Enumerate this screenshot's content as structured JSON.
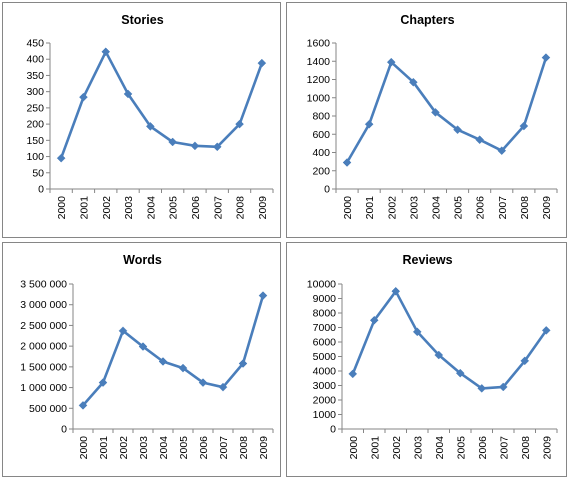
{
  "chart_data": [
    {
      "type": "line",
      "title": "Stories",
      "categories": [
        "2000",
        "2001",
        "2002",
        "2003",
        "2004",
        "2005",
        "2006",
        "2007",
        "2008",
        "2009"
      ],
      "values": [
        95,
        283,
        423,
        293,
        193,
        145,
        133,
        130,
        200,
        388
      ],
      "ylim": [
        0,
        450
      ],
      "yticks": [
        0,
        50,
        100,
        150,
        200,
        250,
        300,
        350,
        400,
        450
      ],
      "ytick_labels": [
        "0",
        "50",
        "100",
        "150",
        "200",
        "250",
        "300",
        "350",
        "400",
        "450"
      ],
      "grid": false,
      "legend": "none"
    },
    {
      "type": "line",
      "title": "Chapters",
      "categories": [
        "2000",
        "2001",
        "2002",
        "2003",
        "2004",
        "2005",
        "2006",
        "2007",
        "2008",
        "2009"
      ],
      "values": [
        290,
        710,
        1390,
        1170,
        840,
        650,
        540,
        420,
        690,
        1440
      ],
      "ylim": [
        0,
        1600
      ],
      "yticks": [
        0,
        200,
        400,
        600,
        800,
        1000,
        1200,
        1400,
        1600
      ],
      "ytick_labels": [
        "0",
        "200",
        "400",
        "600",
        "800",
        "1000",
        "1200",
        "1400",
        "1600"
      ],
      "grid": false,
      "legend": "none"
    },
    {
      "type": "line",
      "title": "Words",
      "categories": [
        "2000",
        "2001",
        "2002",
        "2003",
        "2004",
        "2005",
        "2006",
        "2007",
        "2008",
        "2009"
      ],
      "values": [
        570000,
        1120000,
        2370000,
        1990000,
        1630000,
        1470000,
        1120000,
        1010000,
        1580000,
        3220000
      ],
      "ylim": [
        0,
        3500000
      ],
      "yticks": [
        0,
        500000,
        1000000,
        1500000,
        2000000,
        2500000,
        3000000,
        3500000
      ],
      "ytick_labels": [
        "0",
        "500 000",
        "1 000 000",
        "1 500 000",
        "2 000 000",
        "2 500 000",
        "3 000 000",
        "3 500 000"
      ],
      "grid": false,
      "legend": "none"
    },
    {
      "type": "line",
      "title": "Reviews",
      "categories": [
        "2000",
        "2001",
        "2002",
        "2003",
        "2004",
        "2005",
        "2006",
        "2007",
        "2008",
        "2009"
      ],
      "values": [
        3800,
        7500,
        9500,
        6700,
        5100,
        3850,
        2800,
        2900,
        4700,
        6800
      ],
      "ylim": [
        0,
        10000
      ],
      "yticks": [
        0,
        1000,
        2000,
        3000,
        4000,
        5000,
        6000,
        7000,
        8000,
        9000,
        10000
      ],
      "ytick_labels": [
        "0",
        "1000",
        "2000",
        "3000",
        "4000",
        "5000",
        "6000",
        "7000",
        "8000",
        "9000",
        "10000"
      ],
      "grid": false,
      "legend": "none"
    }
  ],
  "colors": {
    "series": "#4a7ebb",
    "axis": "#868686",
    "panel_border": "#868686"
  }
}
